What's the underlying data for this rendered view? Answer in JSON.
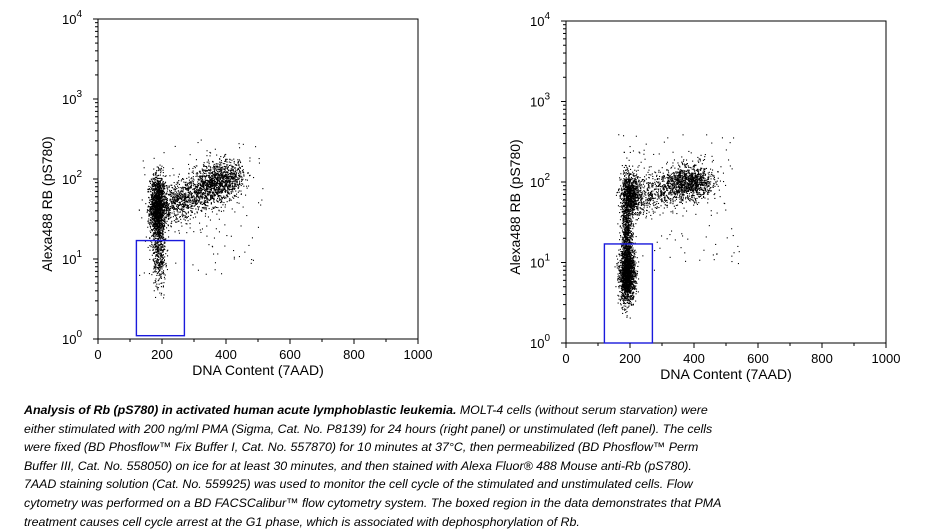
{
  "chart_data": [
    {
      "type": "scatter",
      "panel": "left",
      "xlabel": "DNA Content (7AAD)",
      "ylabel": "Alexa488 RB (pS780)",
      "xlim": [
        0,
        1000
      ],
      "ylim": [
        1,
        10000
      ],
      "yscale": "log",
      "xticks": [
        "0",
        "200",
        "400",
        "600",
        "800",
        "1000"
      ],
      "yticks": [
        {
          "base": "10",
          "exp": "0"
        },
        {
          "base": "10",
          "exp": "1"
        },
        {
          "base": "10",
          "exp": "2"
        },
        {
          "base": "10",
          "exp": "3"
        },
        {
          "base": "10",
          "exp": "4"
        }
      ],
      "gate": {
        "x": [
          120,
          270
        ],
        "y": [
          1.1,
          17
        ]
      },
      "clusters": [
        {
          "description": "G1 population",
          "x_center": 185,
          "x_spread": 12,
          "y_log_center": 1.65,
          "y_log_spread": 0.2,
          "count": 1600
        },
        {
          "description": "G1 low tail",
          "x_center": 190,
          "x_spread": 10,
          "y_log_center": 1.05,
          "y_log_spread": 0.2,
          "count": 350
        },
        {
          "description": "S-G2 diagonal",
          "x_range": [
            200,
            440
          ],
          "y_log_range": [
            1.65,
            2.05
          ],
          "count": 1500
        },
        {
          "description": "G2/M population",
          "x_center": 370,
          "x_spread": 35,
          "y_log_center": 1.98,
          "y_log_spread": 0.13,
          "count": 500
        },
        {
          "description": "sparse outliers",
          "x_range": [
            120,
            520
          ],
          "y_log_range": [
            0.8,
            2.5
          ],
          "count": 130
        }
      ]
    },
    {
      "type": "scatter",
      "panel": "right",
      "xlabel": "DNA Content (7AAD)",
      "ylabel": "Alexa488 RB (pS780)",
      "xlim": [
        0,
        1000
      ],
      "ylim": [
        1,
        10000
      ],
      "yscale": "log",
      "xticks": [
        "0",
        "200",
        "400",
        "600",
        "800",
        "1000"
      ],
      "yticks": [
        {
          "base": "10",
          "exp": "0"
        },
        {
          "base": "10",
          "exp": "1"
        },
        {
          "base": "10",
          "exp": "2"
        },
        {
          "base": "10",
          "exp": "3"
        },
        {
          "base": "10",
          "exp": "4"
        }
      ],
      "gate": {
        "x": [
          120,
          270
        ],
        "y": [
          1.0,
          17
        ]
      },
      "clusters": [
        {
          "description": "G1 dephosphorylated",
          "x_center": 190,
          "x_spread": 12,
          "y_log_center": 0.85,
          "y_log_spread": 0.17,
          "count": 1700
        },
        {
          "description": "G1 vertical streak",
          "x_center": 190,
          "x_spread": 9,
          "y_log_center": 1.45,
          "y_log_spread": 0.32,
          "count": 900
        },
        {
          "description": "G1 phosphorylated",
          "x_center": 200,
          "x_spread": 15,
          "y_log_center": 1.85,
          "y_log_spread": 0.12,
          "count": 700
        },
        {
          "description": "S-G2 horizontal band",
          "x_range": [
            210,
            440
          ],
          "y_log_range": [
            1.8,
            2.05
          ],
          "count": 900
        },
        {
          "description": "G2/M population",
          "x_center": 380,
          "x_spread": 40,
          "y_log_center": 2.0,
          "y_log_spread": 0.1,
          "count": 700
        },
        {
          "description": "sparse outliers",
          "x_range": [
            160,
            540
          ],
          "y_log_range": [
            0.9,
            2.6
          ],
          "count": 130
        }
      ]
    }
  ],
  "caption": {
    "title": "Analysis of Rb (pS780) in activated human acute lymphoblastic leukemia.",
    "lines": [
      " MOLT-4 cells (without serum starvation) were",
      "either stimulated with 200 ng/ml PMA (Sigma, Cat. No. P8139) for 24 hours (right panel) or unstimulated (left panel).  The cells",
      "were fixed (BD Phosflow™ Fix Buffer I, Cat. No. 557870) for 10 minutes at 37°C, then permeabilized (BD Phosflow™ Perm",
      "Buffer III, Cat. No. 558050) on ice for at least 30 minutes, and then stained with Alexa Fluor® 488 Mouse anti-Rb (pS780).",
      "7AAD staining solution (Cat. No. 559925) was used to monitor the cell cycle of the stimulated and unstimulated cells.  Flow",
      "cytometry was performed on a BD FACSCalibur™ flow cytometry system.  The boxed region in the data demonstrates that PMA",
      "treatment causes cell cycle arrest at the G1 phase, which is associated with dephosphorylation of Rb."
    ]
  },
  "colors": {
    "dots": "#000000",
    "gate": "#1a1adc",
    "axis": "#000000"
  }
}
